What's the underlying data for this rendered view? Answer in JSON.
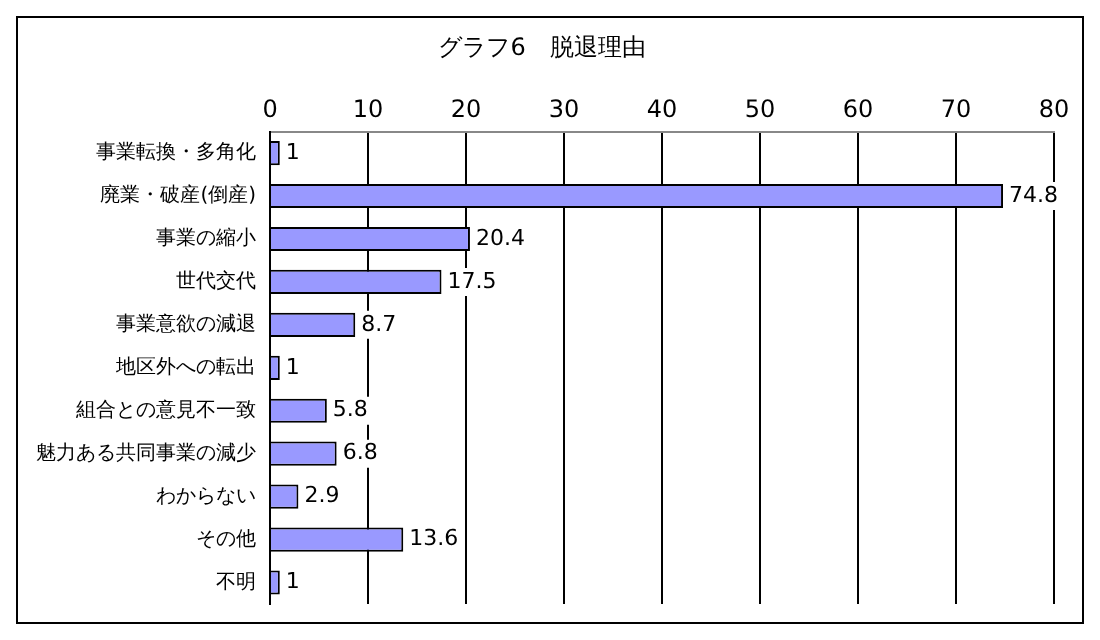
{
  "chart_data": {
    "type": "bar",
    "orientation": "horizontal",
    "title": "グラフ6　脱退理由",
    "categories": [
      "事業転換・多角化",
      "廃業・破産(倒産)",
      "事業の縮小",
      "世代交代",
      "事業意欲の減退",
      "地区外への転出",
      "組合との意見不一致",
      "魅力ある共同事業の減少",
      "わからない",
      "その他",
      "不明"
    ],
    "values": [
      1,
      74.8,
      20.4,
      17.5,
      8.7,
      1,
      5.8,
      6.8,
      2.9,
      13.6,
      1
    ],
    "color": "#9999ff",
    "xlim": [
      0,
      80
    ],
    "xticks": [
      0,
      10,
      20,
      30,
      40,
      50,
      60,
      70,
      80
    ],
    "grid": "x",
    "data_labels": true,
    "legend": false
  }
}
